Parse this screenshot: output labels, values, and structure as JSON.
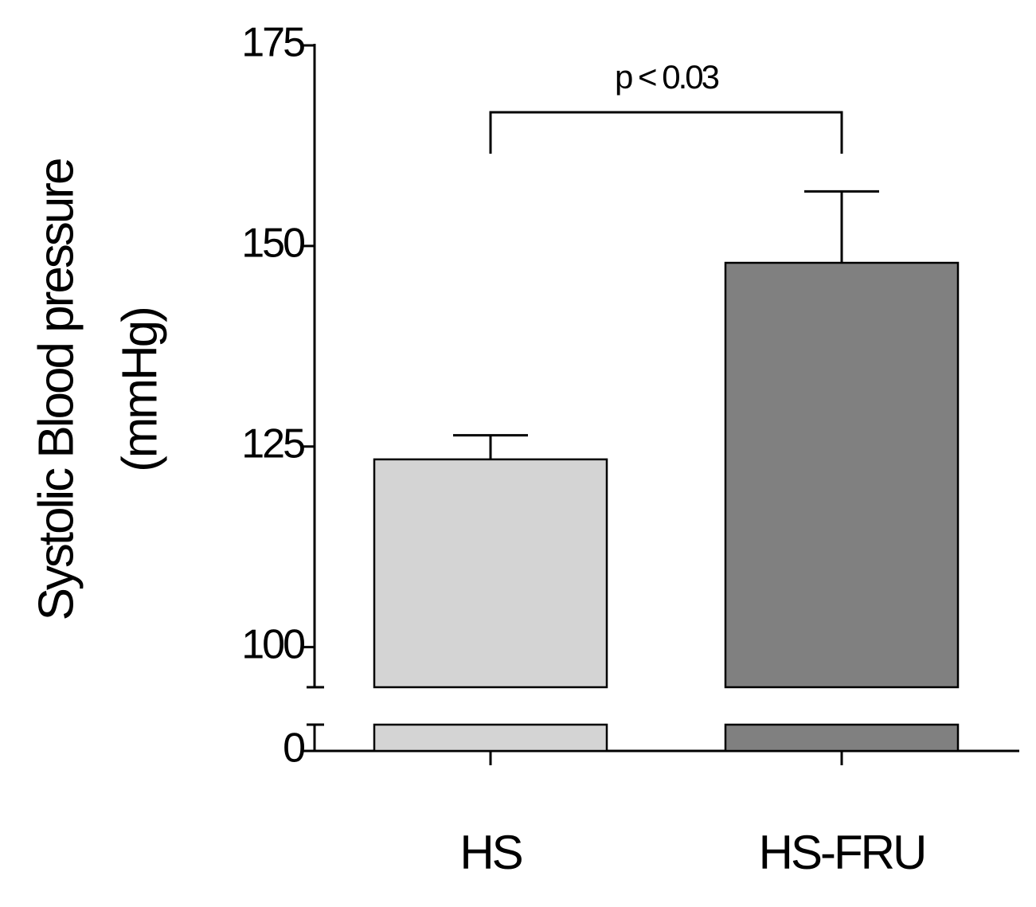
{
  "chart_data": {
    "type": "bar",
    "ylabel": [
      "Systolic Blood pressure",
      "(mmHg)"
    ],
    "categories": [
      "HS",
      "HS-FRU"
    ],
    "values": [
      123.4,
      147.9
    ],
    "errors": [
      3,
      8.9
    ],
    "colors": [
      "#d4d4d4",
      "#808080"
    ],
    "ylim": [
      0,
      175
    ],
    "ybreak": [
      3.3,
      95
    ],
    "yticks": [
      0,
      100,
      125,
      150,
      175
    ],
    "annotation": "p < 0.03"
  }
}
